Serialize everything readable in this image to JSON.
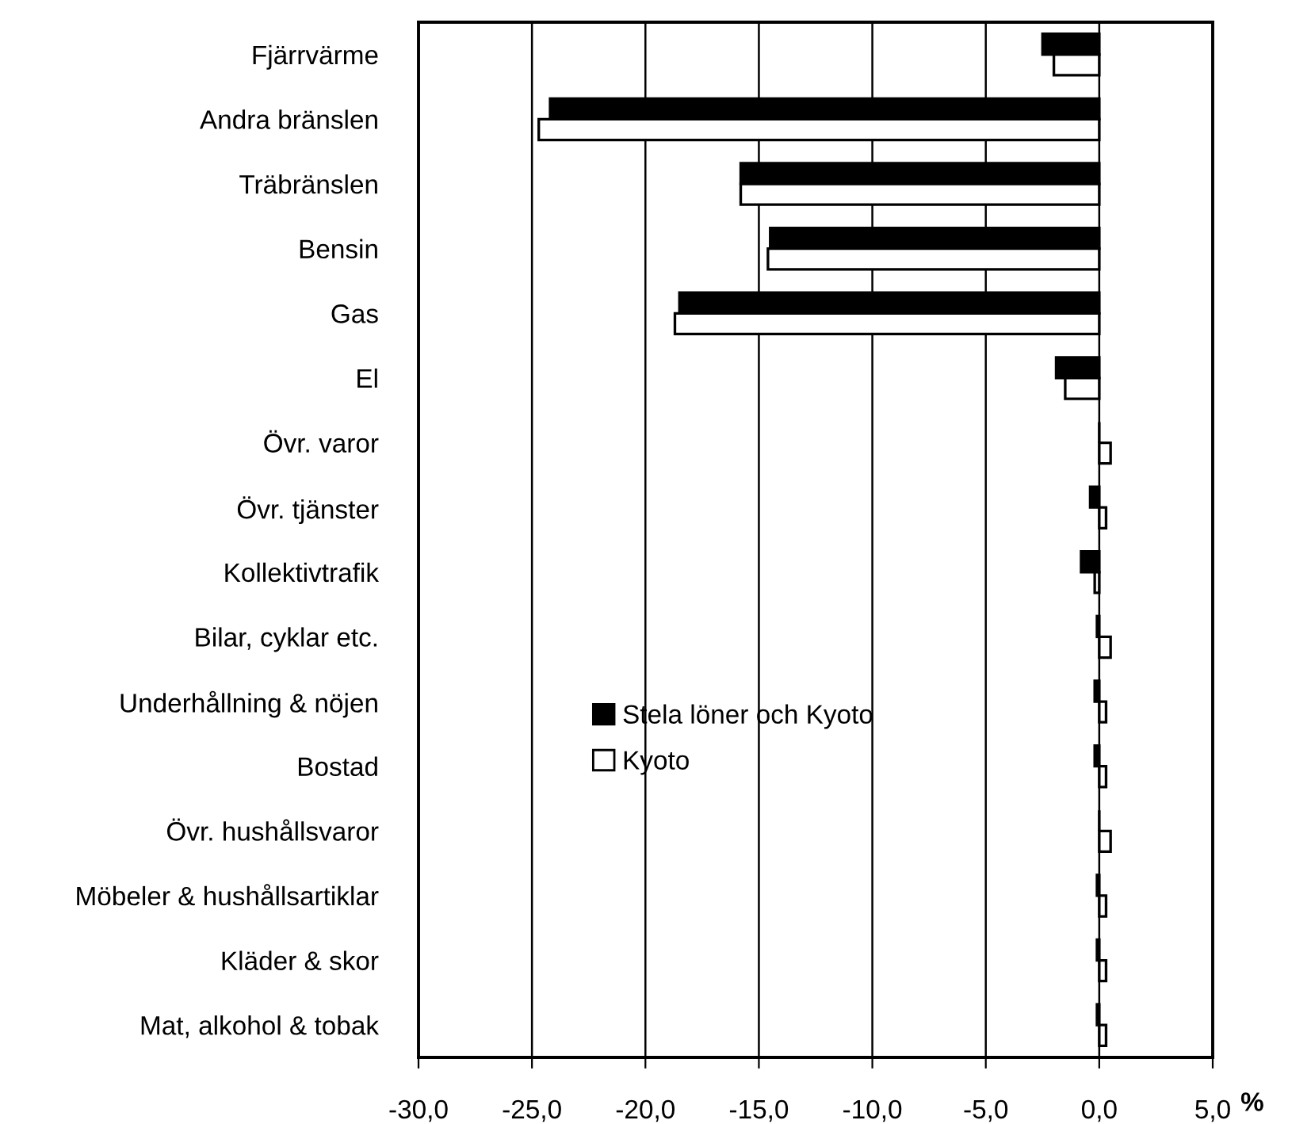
{
  "chart_data": {
    "type": "bar",
    "orientation": "horizontal",
    "xlabel": "%",
    "categories": [
      "Fjärrvärme",
      "Andra bränslen",
      "Träbränslen",
      "Bensin",
      "Gas",
      "El",
      "Övr. varor",
      "Övr. tjänster",
      "Kollektivtrafik",
      "Bilar, cyklar etc.",
      "Underhållning & nöjen",
      "Bostad",
      "Övr. hushållsvaror",
      "Möbeler & hushållsartiklar",
      "Kläder & skor",
      "Mat, alkohol & tobak"
    ],
    "series": [
      {
        "name": "Stela löner och Kyoto",
        "color": "#000000",
        "values": [
          -2.5,
          -24.2,
          -15.8,
          -14.5,
          -18.5,
          -1.9,
          0,
          -0.4,
          -0.8,
          -0.1,
          -0.2,
          -0.2,
          0,
          -0.1,
          -0.1,
          -0.1
        ]
      },
      {
        "name": "Kyoto",
        "color": "#ffffff",
        "values": [
          -2.0,
          -24.7,
          -15.8,
          -14.6,
          -18.7,
          -1.5,
          0.5,
          0.3,
          -0.2,
          0.5,
          0.3,
          0.3,
          0.5,
          0.3,
          0.3,
          0.3
        ]
      }
    ],
    "xlim": [
      -30,
      5
    ],
    "xticks": [
      {
        "value": -30,
        "label": "-30,0"
      },
      {
        "value": -25,
        "label": "-25,0"
      },
      {
        "value": -20,
        "label": "-20,0"
      },
      {
        "value": -15,
        "label": "-15,0"
      },
      {
        "value": -10,
        "label": "-10,0"
      },
      {
        "value": -5,
        "label": "-5,0"
      },
      {
        "value": 0,
        "label": "0,0"
      },
      {
        "value": 5,
        "label": "5,0"
      }
    ],
    "grid": "x",
    "legend": "bottom left"
  }
}
